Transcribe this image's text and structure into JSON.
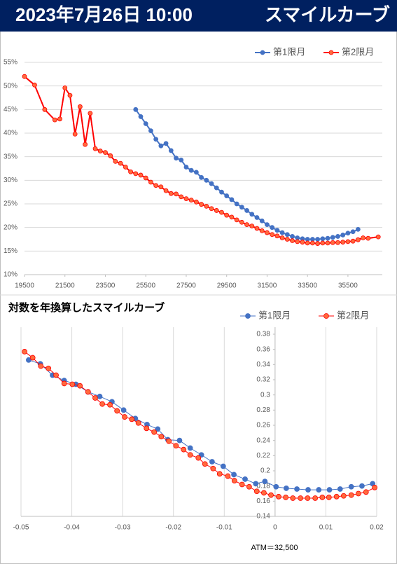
{
  "header": {
    "date": "2023年7月26日 10:00",
    "title": "スマイルカーブ"
  },
  "chart_data": [
    {
      "type": "line",
      "grid": "horizontal",
      "legend": "top-right",
      "xlim": [
        19500,
        37200
      ],
      "xticks": [
        19500,
        21500,
        23500,
        25500,
        27500,
        29500,
        31500,
        33500,
        35500
      ],
      "ylim": [
        10,
        55
      ],
      "yticks": [
        {
          "value": 10,
          "label": "10%"
        },
        {
          "value": 15,
          "label": "15%"
        },
        {
          "value": 20,
          "label": "20%"
        },
        {
          "value": 25,
          "label": "25%"
        },
        {
          "value": 30,
          "label": "30%"
        },
        {
          "value": 35,
          "label": "35%"
        },
        {
          "value": 40,
          "label": "40%"
        },
        {
          "value": 45,
          "label": "45%"
        },
        {
          "value": 50,
          "label": "50%"
        },
        {
          "value": 55,
          "label": "55%"
        }
      ],
      "series": [
        {
          "name": "第1限月",
          "color": "#4472c4",
          "x": [
            25000,
            25250,
            25500,
            25750,
            26000,
            26250,
            26500,
            26750,
            27000,
            27250,
            27500,
            27750,
            28000,
            28250,
            28500,
            28750,
            29000,
            29250,
            29500,
            29750,
            30000,
            30250,
            30500,
            30750,
            31000,
            31250,
            31500,
            31750,
            32000,
            32250,
            32500,
            32750,
            33000,
            33250,
            33500,
            33750,
            34000,
            34250,
            34500,
            34750,
            35000,
            35250,
            35500,
            35750,
            36000
          ],
          "values": [
            45.0,
            43.5,
            42.0,
            40.5,
            38.7,
            37.3,
            37.8,
            36.3,
            34.7,
            34.3,
            32.8,
            32.1,
            31.7,
            30.6,
            30.0,
            29.3,
            28.4,
            27.5,
            26.7,
            25.9,
            25.0,
            24.3,
            23.6,
            22.8,
            22.1,
            21.4,
            20.6,
            20.0,
            19.4,
            18.9,
            18.5,
            18.1,
            17.8,
            17.6,
            17.5,
            17.5,
            17.5,
            17.6,
            17.7,
            17.9,
            18.1,
            18.4,
            18.8,
            19.1,
            19.6
          ]
        },
        {
          "name": "第2限月",
          "color": "#ff0000",
          "x": [
            19500,
            20000,
            20500,
            21000,
            21250,
            21500,
            21750,
            22000,
            22250,
            22500,
            22750,
            23000,
            23250,
            23500,
            23750,
            24000,
            24250,
            24500,
            24750,
            25000,
            25250,
            25500,
            25750,
            26000,
            26250,
            26500,
            26750,
            27000,
            27250,
            27500,
            27750,
            28000,
            28250,
            28500,
            28750,
            29000,
            29250,
            29500,
            29750,
            30000,
            30250,
            30500,
            30750,
            31000,
            31250,
            31500,
            31750,
            32000,
            32250,
            32500,
            32750,
            33000,
            33250,
            33500,
            33750,
            34000,
            34250,
            34500,
            34750,
            35000,
            35250,
            35500,
            35750,
            36000,
            36250,
            36500,
            37000
          ],
          "values": [
            52.0,
            50.2,
            45.0,
            42.8,
            43.0,
            49.6,
            48.0,
            39.8,
            45.6,
            37.6,
            44.2,
            36.7,
            36.2,
            35.9,
            35.2,
            34.0,
            33.6,
            32.8,
            31.8,
            31.4,
            31.1,
            30.5,
            29.6,
            28.9,
            28.6,
            27.8,
            27.2,
            27.1,
            26.5,
            26.1,
            25.8,
            25.4,
            24.9,
            24.5,
            24.0,
            23.6,
            23.2,
            22.6,
            22.2,
            21.6,
            21.1,
            20.6,
            20.3,
            19.8,
            19.3,
            18.9,
            18.5,
            18.2,
            17.8,
            17.5,
            17.2,
            17.0,
            16.9,
            16.7,
            16.7,
            16.6,
            16.7,
            16.7,
            16.8,
            16.8,
            16.9,
            17.0,
            17.1,
            17.4,
            17.8,
            17.7,
            18.0
          ]
        }
      ]
    },
    {
      "type": "scatter",
      "title": "対数を年換算したスマイルカーブ",
      "grid": "vertical",
      "legend": "top-right",
      "y_axis_at": 0,
      "annotation": "ATM＝32,500",
      "xlim": [
        -0.05,
        0.02
      ],
      "xticks": [
        -0.05,
        -0.04,
        -0.03,
        -0.02,
        -0.01,
        0,
        0.01,
        0.02
      ],
      "ylim": [
        0.14,
        0.38
      ],
      "yticks": [
        0.14,
        0.16,
        0.18,
        0.2,
        0.22,
        0.24,
        0.26,
        0.28,
        0.3,
        0.32,
        0.34,
        0.36,
        0.38
      ],
      "series": [
        {
          "name": "第1限月",
          "color": "#4472c4",
          "x": [
            -0.0485,
            -0.0462,
            -0.0438,
            -0.0415,
            -0.0392,
            -0.0368,
            -0.0345,
            -0.0321,
            -0.0298,
            -0.0275,
            -0.0252,
            -0.0231,
            -0.0211,
            -0.0188,
            -0.0167,
            -0.0145,
            -0.0124,
            -0.0102,
            -0.0081,
            -0.0059,
            -0.0038,
            -0.002,
            0.0002,
            0.0022,
            0.0043,
            0.0065,
            0.0086,
            0.0107,
            0.0128,
            0.015,
            0.0171,
            0.0192
          ],
          "values": [
            0.346,
            0.341,
            0.326,
            0.319,
            0.314,
            0.304,
            0.298,
            0.291,
            0.28,
            0.269,
            0.261,
            0.255,
            0.241,
            0.24,
            0.23,
            0.221,
            0.212,
            0.206,
            0.195,
            0.189,
            0.183,
            0.186,
            0.179,
            0.177,
            0.176,
            0.175,
            0.175,
            0.175,
            0.176,
            0.179,
            0.18,
            0.183
          ]
        },
        {
          "name": "第2限月",
          "color": "#ff0000",
          "x": [
            -0.0493,
            -0.0477,
            -0.0461,
            -0.0446,
            -0.0431,
            -0.0415,
            -0.0399,
            -0.0384,
            -0.0368,
            -0.0354,
            -0.034,
            -0.0325,
            -0.0311,
            -0.0296,
            -0.0282,
            -0.0269,
            -0.0253,
            -0.0238,
            -0.0224,
            -0.0209,
            -0.0195,
            -0.018,
            -0.0167,
            -0.0151,
            -0.0138,
            -0.0122,
            -0.0109,
            -0.0093,
            -0.008,
            -0.0065,
            -0.0051,
            -0.0036,
            -0.0022,
            -0.0008,
            0.0007,
            0.0021,
            0.0035,
            0.005,
            0.0064,
            0.0079,
            0.0093,
            0.0106,
            0.0121,
            0.0135,
            0.015,
            0.0164,
            0.0179,
            0.0196
          ],
          "values": [
            0.357,
            0.349,
            0.338,
            0.335,
            0.326,
            0.315,
            0.314,
            0.312,
            0.304,
            0.296,
            0.288,
            0.287,
            0.279,
            0.271,
            0.268,
            0.263,
            0.256,
            0.251,
            0.245,
            0.239,
            0.233,
            0.228,
            0.221,
            0.217,
            0.209,
            0.203,
            0.196,
            0.193,
            0.187,
            0.182,
            0.179,
            0.173,
            0.171,
            0.168,
            0.166,
            0.165,
            0.164,
            0.164,
            0.164,
            0.164,
            0.165,
            0.165,
            0.166,
            0.167,
            0.168,
            0.17,
            0.172,
            0.178
          ]
        }
      ]
    }
  ]
}
